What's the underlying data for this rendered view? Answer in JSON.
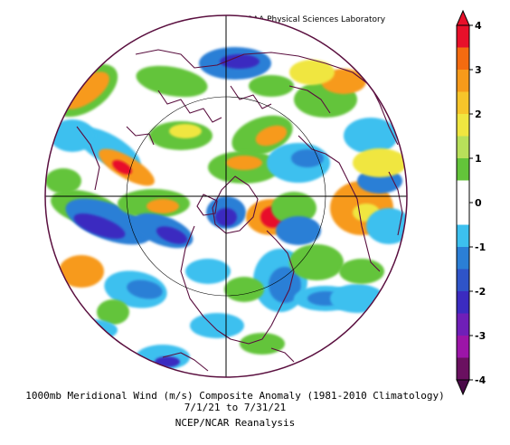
{
  "credit": "NOAA Physical Sciences Laboratory",
  "caption": {
    "line1": "1000mb Meridional Wind (m/s) Composite Anomaly (1981-2010 Climatology)",
    "line2": "7/1/21   to 7/31/21",
    "line3": "NCEP/NCAR Reanalysis"
  },
  "colorbar": {
    "units": "m/s",
    "ticks": [
      "4",
      "3",
      "2",
      "1",
      "0",
      "-1",
      "-2",
      "-3",
      "-4"
    ],
    "min": -4,
    "max": 4,
    "step": 0.5,
    "colors_top_to_bottom": [
      "#e8102a",
      "#f46b10",
      "#f79a1a",
      "#f7c52a",
      "#f0e640",
      "#b8e05a",
      "#63c43a",
      "#ffffff",
      "#ffffff",
      "#3cc0ef",
      "#2b7fd6",
      "#2f54c8",
      "#3b2bc0",
      "#6f1fb8",
      "#9c15a8",
      "#6a1060"
    ]
  },
  "map": {
    "projection": "polar stereographic (north pole)",
    "field": "1000mb meridional wind anomaly",
    "colors": {
      "coast": "#5a0f3f",
      "grid": "#000000",
      "strong_pos": "#e8102a",
      "pos": "#f79a1a",
      "weak_pos": "#f0e640",
      "light_pos": "#63c43a",
      "light_neg": "#3cc0ef",
      "neg": "#2b7fd6",
      "strong_neg": "#3b2bc0",
      "extreme_neg": "#6f1fb8"
    }
  }
}
